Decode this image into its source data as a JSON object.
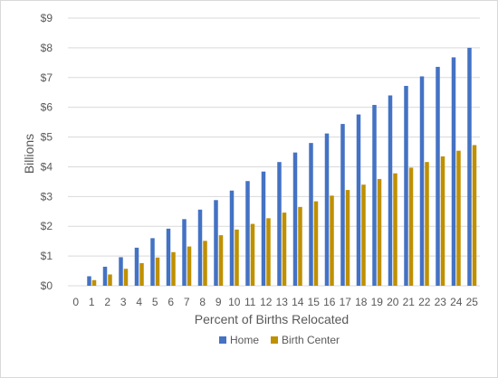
{
  "chart_data": {
    "type": "bar",
    "title": "",
    "xlabel": "Percent of Births Relocated",
    "ylabel": "Billions",
    "ylim": [
      0,
      9
    ],
    "yticks": [
      "$0",
      "$1",
      "$2",
      "$3",
      "$4",
      "$5",
      "$6",
      "$7",
      "$8",
      "$9"
    ],
    "grid": true,
    "legend_position": "bottom",
    "categories": [
      "0",
      "1",
      "2",
      "3",
      "4",
      "5",
      "6",
      "7",
      "8",
      "9",
      "10",
      "11",
      "12",
      "13",
      "14",
      "15",
      "16",
      "17",
      "18",
      "19",
      "20",
      "21",
      "22",
      "23",
      "24",
      "25"
    ],
    "series": [
      {
        "name": "Home",
        "color": "#4472C4",
        "values": [
          0,
          0.32,
          0.64,
          0.96,
          1.28,
          1.6,
          1.92,
          2.24,
          2.56,
          2.88,
          3.2,
          3.52,
          3.84,
          4.16,
          4.48,
          4.8,
          5.12,
          5.44,
          5.76,
          6.08,
          6.4,
          6.72,
          7.04,
          7.36,
          7.68,
          8.0
        ]
      },
      {
        "name": "Birth Center",
        "color": "#BF9000",
        "values": [
          0,
          0.19,
          0.38,
          0.57,
          0.76,
          0.95,
          1.13,
          1.32,
          1.51,
          1.7,
          1.89,
          2.08,
          2.27,
          2.46,
          2.65,
          2.84,
          3.03,
          3.22,
          3.4,
          3.59,
          3.78,
          3.97,
          4.16,
          4.35,
          4.54,
          4.73
        ]
      }
    ]
  }
}
